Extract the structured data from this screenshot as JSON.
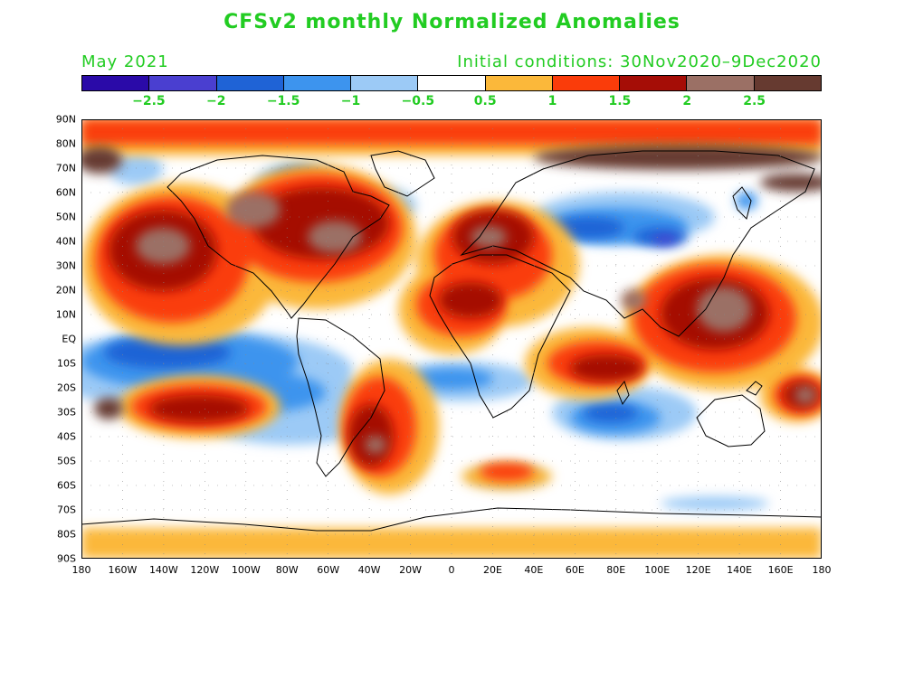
{
  "title": "CFSv2 monthly Normalized Anomalies",
  "valid_month": "May 2021",
  "initial_conditions": "Initial conditions: 30Nov2020–9Dec2020",
  "colorbar": {
    "colors": [
      "#2a0aa8",
      "#4a3fd0",
      "#1f63d6",
      "#3d94ee",
      "#9ccaf6",
      "#ffffff",
      "#fbb83a",
      "#fa3c0a",
      "#a50d06",
      "#9b7065",
      "#663a30"
    ],
    "labels": [
      "−2.5",
      "−2",
      "−1.5",
      "−1",
      "−0.5",
      "0.5",
      "1",
      "1.5",
      "2",
      "2.5"
    ]
  },
  "map": {
    "lat_labels": [
      "90N",
      "80N",
      "70N",
      "60N",
      "50N",
      "40N",
      "30N",
      "20N",
      "10N",
      "EQ",
      "10S",
      "20S",
      "30S",
      "40S",
      "50S",
      "60S",
      "70S",
      "80S",
      "90S"
    ],
    "lon_labels": [
      "180",
      "160W",
      "140W",
      "120W",
      "100W",
      "80W",
      "60W",
      "40W",
      "20W",
      "0",
      "20E",
      "40E",
      "60E",
      "80E",
      "100E",
      "120E",
      "140E",
      "160E",
      "180"
    ]
  }
}
